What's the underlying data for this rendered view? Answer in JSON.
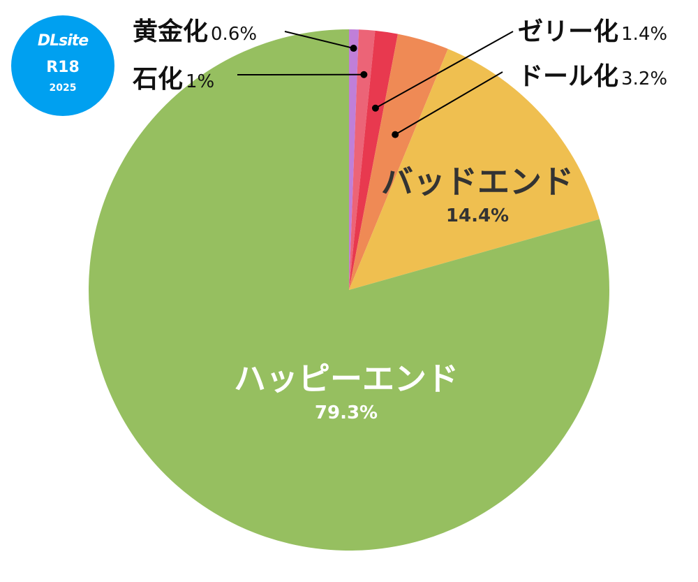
{
  "logo": {
    "brand": "DLsite",
    "rating": "R18",
    "year": "2025"
  },
  "chart_data": {
    "type": "pie",
    "start": "top",
    "direction": "clockwise",
    "slices": [
      {
        "name": "黄金化",
        "value": 0.6,
        "label": "0.6%",
        "color": "#c07fd8"
      },
      {
        "name": "石化",
        "value": 1,
        "label": "1%",
        "color": "#ec6477"
      },
      {
        "name": "ゼリー化",
        "value": 1.4,
        "label": "1.4%",
        "color": "#e8394f"
      },
      {
        "name": "ドール化",
        "value": 3.2,
        "label": "3.2%",
        "color": "#ef8a55"
      },
      {
        "name": "バッドエンド",
        "value": 14.4,
        "label": "14.4%",
        "color": "#efbf50"
      },
      {
        "name": "ハッピーエンド",
        "value": 79.3,
        "label": "79.3%",
        "color": "#96bf60"
      }
    ]
  }
}
